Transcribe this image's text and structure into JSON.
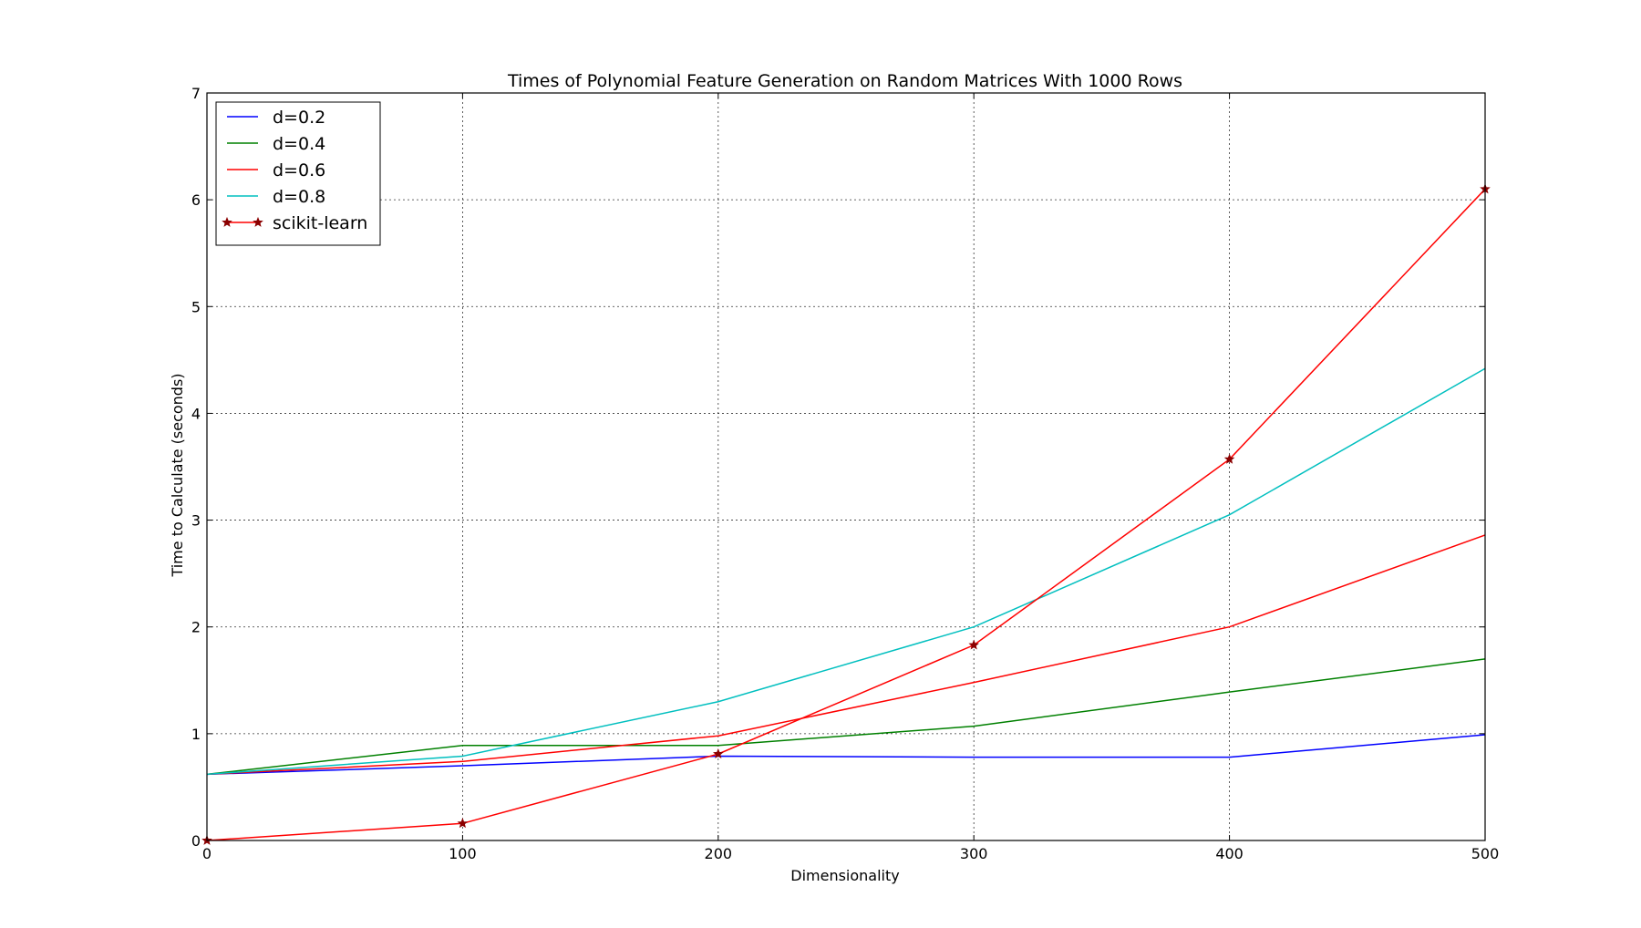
{
  "chart_data": {
    "type": "line",
    "title": "Times of Polynomial Feature Generation on Random Matrices With 1000 Rows",
    "xlabel": "Dimensionality",
    "ylabel": "Time to Calculate (seconds)",
    "xlim": [
      0,
      500
    ],
    "ylim": [
      0,
      7
    ],
    "xticks": [
      0,
      100,
      200,
      300,
      400,
      500
    ],
    "yticks": [
      0,
      1,
      2,
      3,
      4,
      5,
      6,
      7
    ],
    "grid": true,
    "legend_position": "top-left",
    "x": [
      0,
      100,
      200,
      300,
      400,
      500
    ],
    "series": [
      {
        "name": "d=0.2",
        "color": "#0000ff",
        "marker": "none",
        "values": [
          0.62,
          0.7,
          0.79,
          0.78,
          0.78,
          0.99
        ]
      },
      {
        "name": "d=0.4",
        "color": "#008000",
        "marker": "none",
        "values": [
          0.62,
          0.89,
          0.89,
          1.07,
          1.39,
          1.7
        ]
      },
      {
        "name": "d=0.6",
        "color": "#ff0000",
        "marker": "none",
        "values": [
          0.62,
          0.74,
          0.98,
          1.48,
          2.0,
          2.86
        ]
      },
      {
        "name": "d=0.8",
        "color": "#00bfbf",
        "marker": "none",
        "values": [
          0.62,
          0.79,
          1.3,
          2.0,
          3.05,
          4.42
        ]
      },
      {
        "name": "scikit-learn",
        "color": "#ff0000",
        "marker": "star",
        "marker_color": "#8b0000",
        "values": [
          0.0,
          0.16,
          0.81,
          1.83,
          3.57,
          6.1
        ]
      }
    ]
  }
}
